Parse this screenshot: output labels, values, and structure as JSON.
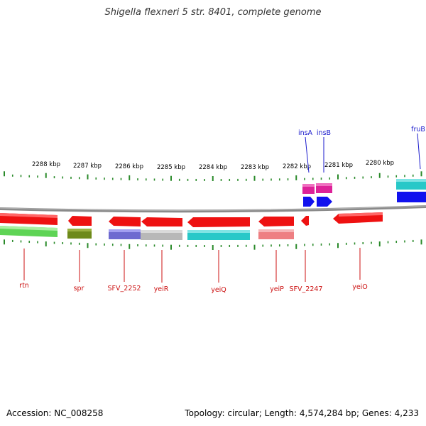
{
  "title": "Shigella flexneri 5 str. 8401, complete genome",
  "accession": "Accession: NC_008258",
  "topology": "Topology: circular; Length: 4,574,284 bp; Genes: 4,233",
  "colors": {
    "tick": "#2a8a2a",
    "backbone": "#8a8a8a",
    "label_top": "#1a1acc",
    "label_bottom": "#cc1111",
    "red": "#ee1111",
    "pink": "#ee7f82",
    "green": "#5ed455",
    "olive": "#6e8a1a",
    "purple": "#6e6ad0",
    "silver": "#b8b8b8",
    "cyan": "#28c8c8",
    "magenta": "#dd2299",
    "blue": "#1111ee"
  },
  "scale_labels": [
    "2288 kbp",
    "2287 kbp",
    "2286 kbp",
    "2285 kbp",
    "2284 kbp",
    "2283 kbp",
    "2282 kbp",
    "2281 kbp",
    "2280 kbp"
  ],
  "top_genes": [
    {
      "name": "insA"
    },
    {
      "name": "insB"
    },
    {
      "name": "fruB"
    }
  ],
  "bottom_genes": [
    {
      "name": "rtn"
    },
    {
      "name": "spr"
    },
    {
      "name": "SFV_2252"
    },
    {
      "name": "yeiR"
    },
    {
      "name": "yeiQ"
    },
    {
      "name": "yeiP"
    },
    {
      "name": "SFV_2247"
    },
    {
      "name": "yeiO"
    }
  ]
}
